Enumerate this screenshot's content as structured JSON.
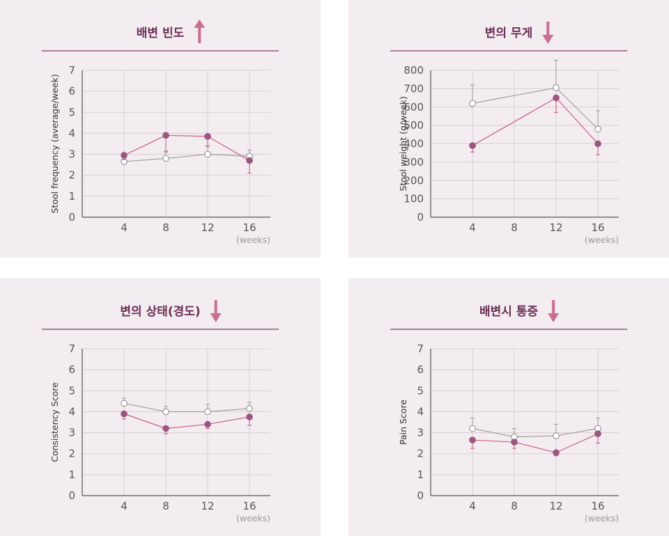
{
  "colors": {
    "panel_bg": "#f3ecf0",
    "title": "#6b2f55",
    "rule": "#7d3c62",
    "grid": "#d9cfd5",
    "treatment": "#9a5580",
    "treatment_line": "#c4537a",
    "control": "#999999",
    "arrow": "#c9708f"
  },
  "chart_data": [
    {
      "type": "line",
      "title": "배변 빈도",
      "trend_icon": "arrow-up-icon",
      "ylabel": "Stool frequency (average/week)",
      "x_unit": "(weeks)",
      "x": [
        4,
        8,
        12,
        16
      ],
      "ylim": [
        0,
        7
      ],
      "yticks": [
        0,
        1,
        2,
        3,
        4,
        5,
        6,
        7
      ],
      "xlim": [
        0,
        18
      ],
      "grid": true,
      "series": [
        {
          "style": "filled",
          "values": [
            2.95,
            3.9,
            3.85,
            2.7
          ],
          "error": [
            0.2,
            0.75,
            0.45,
            0.6
          ]
        },
        {
          "style": "open",
          "values": [
            2.65,
            2.8,
            3.0,
            2.9
          ],
          "error": [
            0.2,
            0.3,
            0.35,
            0.3
          ]
        }
      ]
    },
    {
      "type": "line",
      "title": "변의 무게",
      "trend_icon": "arrow-down-icon",
      "ylabel": "Stool weight (g/week)",
      "x_unit": "(weeks)",
      "x": [
        4,
        8,
        12,
        16
      ],
      "ylim": [
        0,
        800
      ],
      "yticks": [
        0,
        100,
        200,
        300,
        400,
        500,
        600,
        700,
        800
      ],
      "xlim": [
        0,
        18
      ],
      "grid": true,
      "series": [
        {
          "style": "filled",
          "values": [
            390,
            650,
            400
          ],
          "x": [
            4,
            12,
            16
          ],
          "error": [
            35,
            80,
            60
          ]
        },
        {
          "style": "open",
          "values": [
            620,
            705,
            480
          ],
          "x": [
            4,
            12,
            16
          ],
          "error": [
            100,
            150,
            100
          ]
        }
      ]
    },
    {
      "type": "line",
      "title": "변의 상태(경도)",
      "trend_icon": "arrow-down-icon",
      "ylabel": "Consistency Score",
      "x_unit": "(weeks)",
      "x": [
        4,
        8,
        12,
        16
      ],
      "ylim": [
        0,
        7
      ],
      "yticks": [
        0,
        1,
        2,
        3,
        4,
        5,
        6,
        7
      ],
      "xlim": [
        0,
        18
      ],
      "grid": true,
      "series": [
        {
          "style": "filled",
          "values": [
            3.9,
            3.2,
            3.4,
            3.75
          ],
          "error": [
            0.25,
            0.25,
            0.2,
            0.4
          ]
        },
        {
          "style": "open",
          "values": [
            4.4,
            4.0,
            4.0,
            4.15
          ],
          "error": [
            0.25,
            0.25,
            0.35,
            0.3
          ]
        }
      ]
    },
    {
      "type": "line",
      "title": "배변시 통증",
      "trend_icon": "arrow-down-icon",
      "ylabel": "Pain Score",
      "x_unit": "(weeks)",
      "x": [
        4,
        8,
        12,
        16
      ],
      "ylim": [
        0,
        7
      ],
      "yticks": [
        0,
        1,
        2,
        3,
        4,
        5,
        6,
        7
      ],
      "xlim": [
        0,
        18
      ],
      "grid": true,
      "series": [
        {
          "style": "filled",
          "values": [
            2.65,
            2.55,
            2.05,
            2.95
          ],
          "error": [
            0.4,
            0.3,
            0.15,
            0.45
          ]
        },
        {
          "style": "open",
          "values": [
            3.2,
            2.8,
            2.85,
            3.2
          ],
          "error": [
            0.5,
            0.4,
            0.55,
            0.5
          ]
        }
      ]
    }
  ]
}
